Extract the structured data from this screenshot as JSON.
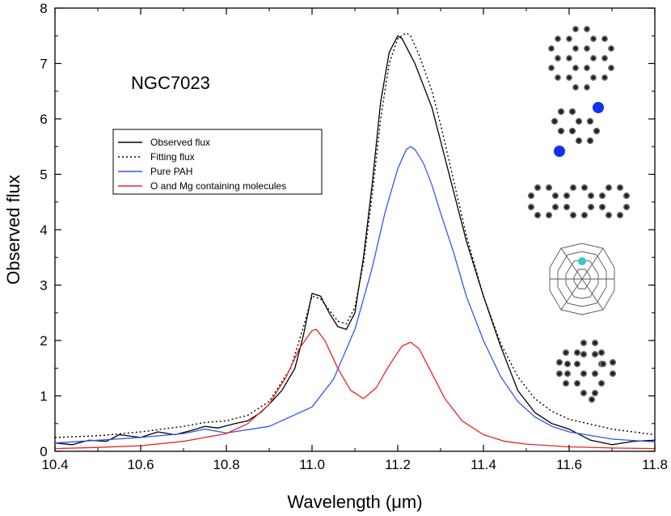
{
  "chart_data": {
    "type": "line",
    "title": "",
    "annotation": "NGC7023",
    "xlabel": "Wavelength (μm)",
    "ylabel": "Observed flux",
    "xlim": [
      10.4,
      11.8
    ],
    "ylim": [
      0,
      8
    ],
    "xticks": [
      "10.4",
      "10.6",
      "10.8",
      "11.0",
      "11.2",
      "11.4",
      "11.6",
      "11.8"
    ],
    "yticks": [
      "0",
      "1",
      "2",
      "3",
      "4",
      "5",
      "6",
      "7",
      "8"
    ],
    "legend_position": "upper-left",
    "series": [
      {
        "name": "Observed flux",
        "color": "#000000",
        "style": "solid",
        "x": [
          10.4,
          10.44,
          10.48,
          10.52,
          10.55,
          10.6,
          10.64,
          10.68,
          10.72,
          10.75,
          10.78,
          10.82,
          10.85,
          10.88,
          10.9,
          10.93,
          10.96,
          10.98,
          11.0,
          11.02,
          11.04,
          11.06,
          11.08,
          11.1,
          11.12,
          11.14,
          11.16,
          11.18,
          11.2,
          11.21,
          11.22,
          11.24,
          11.26,
          11.28,
          11.3,
          11.33,
          11.36,
          11.4,
          11.44,
          11.48,
          11.52,
          11.56,
          11.6,
          11.65,
          11.7,
          11.75,
          11.8
        ],
        "y": [
          0.15,
          0.12,
          0.2,
          0.18,
          0.3,
          0.25,
          0.35,
          0.3,
          0.38,
          0.45,
          0.42,
          0.5,
          0.55,
          0.7,
          0.85,
          1.1,
          1.5,
          2.1,
          2.85,
          2.8,
          2.5,
          2.25,
          2.2,
          2.5,
          3.5,
          4.8,
          6.3,
          7.2,
          7.5,
          7.45,
          7.3,
          7.0,
          6.6,
          6.2,
          5.6,
          4.7,
          3.8,
          2.8,
          1.9,
          1.1,
          0.7,
          0.5,
          0.4,
          0.2,
          0.12,
          0.18,
          0.2
        ]
      },
      {
        "name": "Fitting flux",
        "color": "#000000",
        "style": "dotted",
        "x": [
          10.4,
          10.5,
          10.6,
          10.7,
          10.75,
          10.8,
          10.85,
          10.9,
          10.95,
          10.98,
          11.0,
          11.02,
          11.04,
          11.06,
          11.08,
          11.1,
          11.12,
          11.14,
          11.16,
          11.18,
          11.2,
          11.22,
          11.23,
          11.25,
          11.28,
          11.3,
          11.33,
          11.36,
          11.4,
          11.44,
          11.48,
          11.52,
          11.56,
          11.6,
          11.7,
          11.8
        ],
        "y": [
          0.25,
          0.28,
          0.35,
          0.45,
          0.52,
          0.55,
          0.65,
          0.9,
          1.5,
          2.25,
          2.8,
          2.75,
          2.55,
          2.35,
          2.3,
          2.6,
          3.4,
          4.6,
          6.0,
          7.0,
          7.45,
          7.55,
          7.5,
          7.15,
          6.5,
          5.9,
          4.9,
          3.9,
          2.8,
          1.95,
          1.35,
          0.95,
          0.72,
          0.58,
          0.4,
          0.3
        ]
      },
      {
        "name": "Pure PAH",
        "color": "#3355ee",
        "style": "solid",
        "x": [
          10.4,
          10.5,
          10.6,
          10.7,
          10.75,
          10.8,
          10.9,
          11.0,
          11.05,
          11.1,
          11.14,
          11.17,
          11.2,
          11.22,
          11.23,
          11.24,
          11.26,
          11.28,
          11.3,
          11.33,
          11.36,
          11.4,
          11.44,
          11.48,
          11.52,
          11.56,
          11.6,
          11.7,
          11.8
        ],
        "y": [
          0.15,
          0.2,
          0.25,
          0.32,
          0.4,
          0.33,
          0.45,
          0.8,
          1.3,
          2.2,
          3.3,
          4.3,
          5.1,
          5.45,
          5.5,
          5.45,
          5.2,
          4.8,
          4.3,
          3.6,
          2.8,
          2.0,
          1.35,
          0.9,
          0.62,
          0.45,
          0.35,
          0.22,
          0.17
        ]
      },
      {
        "name": "O and Mg containing molecules",
        "color": "#ee2222",
        "style": "solid",
        "x": [
          10.4,
          10.5,
          10.6,
          10.7,
          10.8,
          10.85,
          10.9,
          10.94,
          10.97,
          11.0,
          11.01,
          11.03,
          11.06,
          11.09,
          11.12,
          11.15,
          11.18,
          11.21,
          11.23,
          11.25,
          11.28,
          11.31,
          11.35,
          11.4,
          11.45,
          11.5,
          11.6,
          11.7,
          11.8
        ],
        "y": [
          0.05,
          0.07,
          0.1,
          0.18,
          0.32,
          0.5,
          0.85,
          1.35,
          1.85,
          2.18,
          2.2,
          2.0,
          1.5,
          1.1,
          0.95,
          1.15,
          1.55,
          1.9,
          1.97,
          1.85,
          1.4,
          0.95,
          0.55,
          0.3,
          0.18,
          0.13,
          0.08,
          0.06,
          0.05
        ]
      }
    ]
  }
}
